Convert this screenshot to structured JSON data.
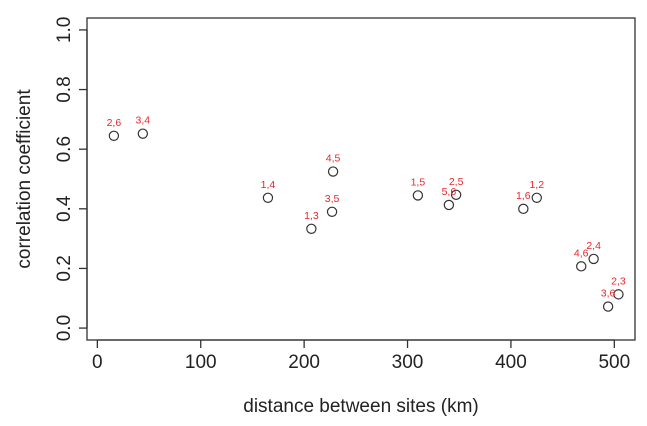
{
  "chart_data": {
    "type": "scatter",
    "title": "",
    "xlabel": "distance between sites (km)",
    "ylabel": "correlation coefficient",
    "xlim": [
      -10,
      520
    ],
    "ylim": [
      -0.04,
      1.04
    ],
    "xticks": [
      0,
      100,
      200,
      300,
      400,
      500
    ],
    "xtick_labels": [
      "0",
      "100",
      "200",
      "300",
      "400",
      "500"
    ],
    "yticks": [
      0.0,
      0.2,
      0.4,
      0.6,
      0.8,
      1.0
    ],
    "ytick_labels": [
      "0.0",
      "0.2",
      "0.4",
      "0.6",
      "0.8",
      "1.0"
    ],
    "grid": false,
    "marker": "open-circle",
    "marker_color": "#333333",
    "label_color": "#e8262d",
    "points": [
      {
        "label": "2,6",
        "x": 16,
        "y": 0.645
      },
      {
        "label": "3,4",
        "x": 44,
        "y": 0.652
      },
      {
        "label": "1,4",
        "x": 165,
        "y": 0.437
      },
      {
        "label": "1,3",
        "x": 207,
        "y": 0.333
      },
      {
        "label": "4,5",
        "x": 228,
        "y": 0.525
      },
      {
        "label": "3,5",
        "x": 227,
        "y": 0.39
      },
      {
        "label": "1,5",
        "x": 310,
        "y": 0.445
      },
      {
        "label": "5,6",
        "x": 340,
        "y": 0.413
      },
      {
        "label": "2,5",
        "x": 347,
        "y": 0.447
      },
      {
        "label": "1,6",
        "x": 412,
        "y": 0.4
      },
      {
        "label": "1,2",
        "x": 425,
        "y": 0.437
      },
      {
        "label": "4,6",
        "x": 468,
        "y": 0.207
      },
      {
        "label": "2,4",
        "x": 480,
        "y": 0.232
      },
      {
        "label": "3,6",
        "x": 494,
        "y": 0.072
      },
      {
        "label": "2,3",
        "x": 504,
        "y": 0.113
      }
    ]
  }
}
